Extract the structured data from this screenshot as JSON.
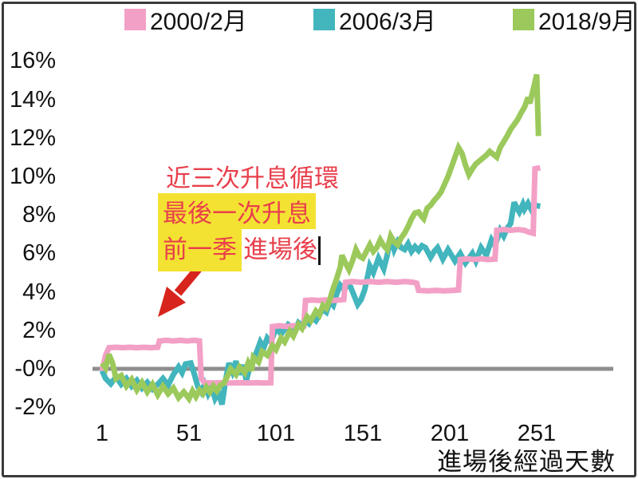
{
  "legend": [
    {
      "label": "2000/2月",
      "color": "#f3a0c6"
    },
    {
      "label": "2006/3月",
      "color": "#42b5bd"
    },
    {
      "label": "2018/9月",
      "color": "#9cc95b"
    }
  ],
  "annotation": {
    "line1": "近三次升息循環",
    "line2": "最後一次升息",
    "line3_highlight": "前一季",
    "line3_rest": "進場後"
  },
  "colors": {
    "annotation_text": "#e8404c",
    "highlight": "#f4e232",
    "arrow": "#d7241c",
    "zero_line": "#8e8e8e"
  },
  "chart_data": {
    "type": "line",
    "title": "",
    "xlabel": "進場後經過天數",
    "ylabel": "",
    "x_range": [
      1,
      255
    ],
    "y_range": [
      -2,
      16
    ],
    "grid": false,
    "zero_line": true,
    "unit": "%",
    "y_axis": {
      "ticks": [
        "16%",
        "14%",
        "12%",
        "10%",
        "8%",
        "6%",
        "4%",
        "2%",
        "-0%",
        "-2%"
      ],
      "values": [
        16,
        14,
        12,
        10,
        8,
        6,
        4,
        2,
        0,
        -2
      ]
    },
    "x_axis": {
      "ticks": [
        "1",
        "51",
        "101",
        "151",
        "201",
        "251"
      ],
      "values": [
        1,
        51,
        101,
        151,
        201,
        251
      ]
    },
    "series": [
      {
        "name": "2006/3月",
        "color": "#42b5bd",
        "points": [
          [
            1,
            -0.1
          ],
          [
            3,
            -0.5
          ],
          [
            6,
            -0.78
          ],
          [
            9,
            -0.42
          ],
          [
            12,
            -0.8
          ],
          [
            15,
            -0.5
          ],
          [
            18,
            -0.9
          ],
          [
            21,
            -0.6
          ],
          [
            24,
            -1.0
          ],
          [
            27,
            -0.7
          ],
          [
            30,
            -1.05
          ],
          [
            33,
            -0.8
          ],
          [
            36,
            -0.5
          ],
          [
            39,
            -0.85
          ],
          [
            42,
            -0.3
          ],
          [
            45,
            0.1
          ],
          [
            47,
            -0.2
          ],
          [
            49,
            0.25
          ],
          [
            52,
            0.3
          ],
          [
            54,
            -0.25
          ],
          [
            56,
            -0.9
          ],
          [
            58,
            -1.2
          ],
          [
            60,
            -0.8
          ],
          [
            62,
            -1.3
          ],
          [
            64,
            -0.95
          ],
          [
            66,
            -1.55
          ],
          [
            68,
            -1.25
          ],
          [
            70,
            -1.85
          ],
          [
            72,
            -0.6
          ],
          [
            74,
            0.3
          ],
          [
            76,
            -0.15
          ],
          [
            78,
            0.4
          ],
          [
            80,
            -0.3
          ],
          [
            82,
            0.2
          ],
          [
            84,
            -0.6
          ],
          [
            86,
            0.1
          ],
          [
            88,
            0.5
          ],
          [
            90,
            0.9
          ],
          [
            92,
            1.4
          ],
          [
            94,
            1.1
          ],
          [
            96,
            1.6
          ],
          [
            98,
            1.4
          ],
          [
            100,
            1.85
          ],
          [
            102,
            2.1
          ],
          [
            104,
            1.8
          ],
          [
            106,
            2.05
          ],
          [
            108,
            2.3
          ],
          [
            110,
            2.15
          ],
          [
            112,
            2.0
          ],
          [
            114,
            2.4
          ],
          [
            116,
            2.25
          ],
          [
            118,
            2.5
          ],
          [
            120,
            2.35
          ],
          [
            122,
            2.65
          ],
          [
            124,
            2.5
          ],
          [
            126,
            2.8
          ],
          [
            128,
            3.1
          ],
          [
            130,
            2.95
          ],
          [
            132,
            3.5
          ],
          [
            134,
            3.3
          ],
          [
            136,
            3.9
          ],
          [
            138,
            4.35
          ],
          [
            140,
            4.15
          ],
          [
            142,
            4.3
          ],
          [
            144,
            4.25
          ],
          [
            146,
            3.8
          ],
          [
            148,
            3.35
          ],
          [
            150,
            3.6
          ],
          [
            152,
            4.1
          ],
          [
            154,
            4.9
          ],
          [
            155,
            5.35
          ],
          [
            157,
            5.0
          ],
          [
            160,
            5.75
          ],
          [
            163,
            5.2
          ],
          [
            165,
            5.9
          ],
          [
            167,
            6.85
          ],
          [
            169,
            6.2
          ],
          [
            171,
            6.6
          ],
          [
            173,
            6.3
          ],
          [
            175,
            6.2
          ],
          [
            177,
            6.5
          ],
          [
            179,
            6.1
          ],
          [
            181,
            6.35
          ],
          [
            183,
            6.15
          ],
          [
            185,
            6.4
          ],
          [
            187,
            6.3
          ],
          [
            190,
            5.8
          ],
          [
            192,
            6.1
          ],
          [
            194,
            6.3
          ],
          [
            197,
            5.7
          ],
          [
            200,
            6.2
          ],
          [
            202,
            5.9
          ],
          [
            204,
            5.6
          ],
          [
            207,
            6.0
          ],
          [
            210,
            5.5
          ],
          [
            212,
            5.75
          ],
          [
            214,
            6.0
          ],
          [
            216,
            5.6
          ],
          [
            219,
            6.3
          ],
          [
            222,
            5.9
          ],
          [
            225,
            6.7
          ],
          [
            227,
            6.4
          ],
          [
            230,
            7.2
          ],
          [
            232,
            6.9
          ],
          [
            234,
            7.3
          ],
          [
            236,
            7.55
          ],
          [
            238,
            8.65
          ],
          [
            240,
            8.3
          ],
          [
            241,
            8.15
          ],
          [
            243,
            8.55
          ],
          [
            244,
            8.3
          ],
          [
            246,
            8.6
          ],
          [
            248,
            8.25
          ],
          [
            250,
            8.5
          ],
          [
            253,
            8.45
          ]
        ]
      },
      {
        "name": "2000/2月",
        "color": "#f3a0c6",
        "points": [
          [
            1,
            -0.1
          ],
          [
            2,
            0.3
          ],
          [
            3,
            0.7
          ],
          [
            5,
            1.1
          ],
          [
            9,
            1.12
          ],
          [
            13,
            1.1
          ],
          [
            17,
            1.12
          ],
          [
            21,
            1.1
          ],
          [
            25,
            1.12
          ],
          [
            29,
            1.1
          ],
          [
            33,
            1.12
          ],
          [
            34,
            1.45
          ],
          [
            38,
            1.48
          ],
          [
            42,
            1.45
          ],
          [
            46,
            1.48
          ],
          [
            50,
            1.45
          ],
          [
            54,
            1.48
          ],
          [
            57,
            1.45
          ],
          [
            58,
            -0.5
          ],
          [
            60,
            -0.72
          ],
          [
            65,
            -0.74
          ],
          [
            70,
            -0.72
          ],
          [
            75,
            -0.74
          ],
          [
            80,
            -0.72
          ],
          [
            85,
            -0.74
          ],
          [
            90,
            -0.72
          ],
          [
            94,
            -0.74
          ],
          [
            98,
            -0.72
          ],
          [
            99,
            2.2
          ],
          [
            103,
            2.24
          ],
          [
            107,
            2.2
          ],
          [
            111,
            2.24
          ],
          [
            115,
            2.2
          ],
          [
            117,
            2.22
          ],
          [
            118,
            3.55
          ],
          [
            122,
            3.58
          ],
          [
            126,
            3.55
          ],
          [
            130,
            3.58
          ],
          [
            134,
            3.55
          ],
          [
            138,
            3.58
          ],
          [
            140,
            3.6
          ],
          [
            141,
            4.5
          ],
          [
            145,
            4.54
          ],
          [
            150,
            4.5
          ],
          [
            155,
            4.54
          ],
          [
            160,
            4.5
          ],
          [
            165,
            4.54
          ],
          [
            170,
            4.5
          ],
          [
            175,
            4.54
          ],
          [
            180,
            4.5
          ],
          [
            182,
            4.45
          ],
          [
            183,
            4.08
          ],
          [
            188,
            4.05
          ],
          [
            193,
            4.08
          ],
          [
            198,
            4.05
          ],
          [
            203,
            4.08
          ],
          [
            206,
            4.1
          ],
          [
            207,
            5.68
          ],
          [
            211,
            5.72
          ],
          [
            215,
            5.68
          ],
          [
            219,
            5.72
          ],
          [
            223,
            5.68
          ],
          [
            227,
            5.7
          ],
          [
            228,
            7.2
          ],
          [
            232,
            7.24
          ],
          [
            236,
            7.2
          ],
          [
            240,
            7.24
          ],
          [
            244,
            7.2
          ],
          [
            246,
            7.12
          ],
          [
            249,
            7.05
          ],
          [
            250,
            10.4
          ],
          [
            253,
            10.45
          ]
        ]
      },
      {
        "name": "2018/9月",
        "color": "#9cc95b",
        "points": [
          [
            1,
            0.3
          ],
          [
            3,
            0.05
          ],
          [
            5,
            0.75
          ],
          [
            7,
            0.3
          ],
          [
            9,
            -0.5
          ],
          [
            12,
            -0.35
          ],
          [
            15,
            -0.9
          ],
          [
            18,
            -0.55
          ],
          [
            21,
            -1.1
          ],
          [
            24,
            -0.7
          ],
          [
            27,
            -1.2
          ],
          [
            30,
            -0.8
          ],
          [
            33,
            -1.35
          ],
          [
            36,
            -0.9
          ],
          [
            39,
            -1.3
          ],
          [
            42,
            -1.0
          ],
          [
            45,
            -1.5
          ],
          [
            48,
            -1.2
          ],
          [
            51,
            -1.55
          ],
          [
            53,
            -1.15
          ],
          [
            55,
            -1.45
          ],
          [
            57,
            -1.1
          ],
          [
            59,
            -1.3
          ],
          [
            61,
            -0.95
          ],
          [
            63,
            -1.2
          ],
          [
            65,
            -0.9
          ],
          [
            67,
            -1.15
          ],
          [
            69,
            -0.85
          ],
          [
            71,
            -0.75
          ],
          [
            73,
            -0.4
          ],
          [
            75,
            0.0
          ],
          [
            78,
            -0.3
          ],
          [
            80,
            0.1
          ],
          [
            83,
            -0.2
          ],
          [
            85,
            0.3
          ],
          [
            87,
            -0.1
          ],
          [
            88,
            0.6
          ],
          [
            91,
            0.35
          ],
          [
            93,
            0.9
          ],
          [
            96,
            0.7
          ],
          [
            99,
            1.2
          ],
          [
            101,
            1.0
          ],
          [
            104,
            1.6
          ],
          [
            106,
            1.4
          ],
          [
            109,
            1.95
          ],
          [
            111,
            1.7
          ],
          [
            114,
            2.3
          ],
          [
            116,
            2.1
          ],
          [
            119,
            2.7
          ],
          [
            121,
            2.5
          ],
          [
            124,
            3.0
          ],
          [
            126,
            2.8
          ],
          [
            128,
            3.3
          ],
          [
            130,
            3.15
          ],
          [
            132,
            3.6
          ],
          [
            134,
            4.2
          ],
          [
            136,
            4.7
          ],
          [
            138,
            5.3
          ],
          [
            139,
            5.9
          ],
          [
            141,
            5.5
          ],
          [
            143,
            5.15
          ],
          [
            145,
            5.6
          ],
          [
            147,
            6.2
          ],
          [
            149,
            5.85
          ],
          [
            151,
            5.75
          ],
          [
            153,
            6.1
          ],
          [
            155,
            6.45
          ],
          [
            157,
            6.1
          ],
          [
            159,
            6.3
          ],
          [
            161,
            6.7
          ],
          [
            163,
            6.4
          ],
          [
            165,
            6.2
          ],
          [
            167,
            6.9
          ],
          [
            169,
            6.6
          ],
          [
            171,
            6.45
          ],
          [
            173,
            6.8
          ],
          [
            175,
            7.05
          ],
          [
            177,
            7.4
          ],
          [
            179,
            7.8
          ],
          [
            181,
            8.1
          ],
          [
            183,
            8.15
          ],
          [
            185,
            7.9
          ],
          [
            186,
            7.8
          ],
          [
            188,
            8.35
          ],
          [
            190,
            8.5
          ],
          [
            192,
            8.75
          ],
          [
            194,
            8.95
          ],
          [
            196,
            9.2
          ],
          [
            198,
            9.6
          ],
          [
            200,
            10.0
          ],
          [
            202,
            10.5
          ],
          [
            204,
            11.0
          ],
          [
            206,
            11.5
          ],
          [
            208,
            11.2
          ],
          [
            210,
            10.6
          ],
          [
            212,
            10.1
          ],
          [
            214,
            10.4
          ],
          [
            216,
            10.65
          ],
          [
            218,
            10.8
          ],
          [
            220,
            10.95
          ],
          [
            222,
            11.1
          ],
          [
            224,
            11.3
          ],
          [
            226,
            11.15
          ],
          [
            228,
            11.0
          ],
          [
            230,
            11.5
          ],
          [
            232,
            11.8
          ],
          [
            234,
            12.1
          ],
          [
            236,
            12.45
          ],
          [
            238,
            12.7
          ],
          [
            240,
            12.95
          ],
          [
            242,
            13.3
          ],
          [
            244,
            13.6
          ],
          [
            246,
            14.1
          ],
          [
            247,
            13.8
          ],
          [
            249,
            14.5
          ],
          [
            251,
            15.3
          ],
          [
            252,
            12.1
          ]
        ]
      }
    ]
  }
}
